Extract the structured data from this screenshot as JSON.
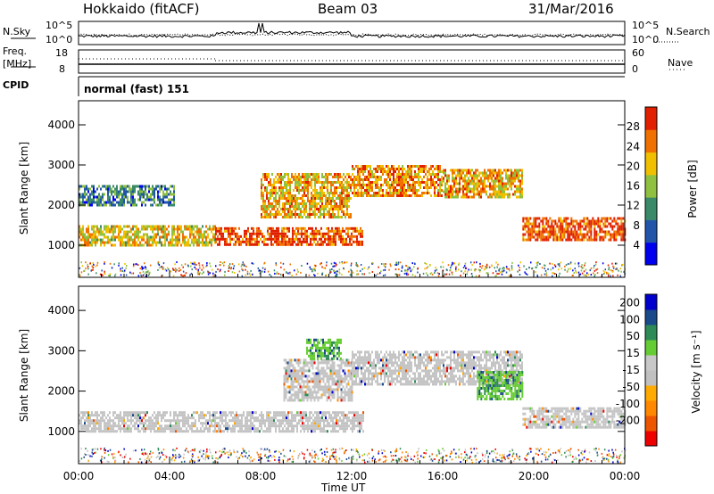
{
  "header": {
    "station": "Hokkaido (fitACF)",
    "beam": "Beam 03",
    "date": "31/Mar/2016"
  },
  "panels": {
    "nsky_label": "N.Sky",
    "nsky_ticks": [
      "10^5",
      "10^0"
    ],
    "nsearch_label": "N.Search",
    "nsearch_ticks": [
      "10^5",
      "10^0"
    ],
    "freq_label": "Freq.",
    "freq_unit": "[MHz]",
    "freq_ticks": [
      "18",
      "8"
    ],
    "nave_label": "Nave",
    "nave_ticks": [
      "60",
      "0"
    ],
    "cpid_label": "CPID",
    "cpid_value": "normal (fast) 151"
  },
  "colors": {
    "power_scale": [
      "#0000ee",
      "#2255aa",
      "#3a8a6a",
      "#8fc040",
      "#f0c000",
      "#f07000",
      "#e02000"
    ],
    "velocity_scale": [
      "#ee0000",
      "#ee5500",
      "#ff8800",
      "#ffaa00",
      "#c0c0c0",
      "#c8c8c8",
      "#66cc33",
      "#2e8b57",
      "#1a4a8a",
      "#0000cc"
    ]
  },
  "chart_data": [
    {
      "type": "heatmap",
      "name": "power",
      "ylabel": "Slant Range [km]",
      "colorbar_label": "Power [dB]",
      "colorbar_ticks": [
        "28",
        "24",
        "20",
        "16",
        "12",
        "8",
        "4"
      ],
      "y_ticks": [
        "4000",
        "3000",
        "2000",
        "1000"
      ],
      "ylim": [
        200,
        4600
      ],
      "xlim_hours": [
        0,
        24
      ],
      "bands": [
        {
          "t": [
            0.0,
            6.0
          ],
          "r": [
            1000,
            1500
          ],
          "level": 20
        },
        {
          "t": [
            0.0,
            4.2
          ],
          "r": [
            2000,
            2500
          ],
          "level": 10
        },
        {
          "t": [
            6.0,
            12.5
          ],
          "r": [
            1000,
            1450
          ],
          "level": 28
        },
        {
          "t": [
            8.0,
            12.0
          ],
          "r": [
            1700,
            2800
          ],
          "level": 22
        },
        {
          "t": [
            12.0,
            16.0
          ],
          "r": [
            2200,
            3000
          ],
          "level": 24
        },
        {
          "t": [
            16.0,
            19.5
          ],
          "r": [
            2200,
            2900
          ],
          "level": 22
        },
        {
          "t": [
            19.5,
            24.0
          ],
          "r": [
            1100,
            1700
          ],
          "level": 28
        }
      ]
    },
    {
      "type": "heatmap",
      "name": "velocity",
      "ylabel": "Slant Range [km]",
      "xlabel": "Time UT",
      "colorbar_label": "Velocity [m s⁻¹]",
      "colorbar_ticks": [
        "200",
        "100",
        "50",
        "15",
        "-15",
        "-50",
        "-100",
        "-200"
      ],
      "y_ticks": [
        "4000",
        "3000",
        "2000",
        "1000"
      ],
      "x_ticks": [
        "00:00",
        "04:00",
        "08:00",
        "12:00",
        "16:00",
        "20:00",
        "00:00"
      ],
      "ylim": [
        200,
        4600
      ],
      "xlim_hours": [
        0,
        24
      ],
      "bands": [
        {
          "t": [
            0.0,
            12.5
          ],
          "r": [
            1000,
            1500
          ],
          "level": 0
        },
        {
          "t": [
            9.0,
            12.0
          ],
          "r": [
            1800,
            2800
          ],
          "level": 0
        },
        {
          "t": [
            10.0,
            11.5
          ],
          "r": [
            2800,
            3300
          ],
          "level": 50
        },
        {
          "t": [
            12.0,
            19.5
          ],
          "r": [
            2200,
            3000
          ],
          "level": 0
        },
        {
          "t": [
            17.5,
            19.5
          ],
          "r": [
            1800,
            2500
          ],
          "level": 40
        },
        {
          "t": [
            19.5,
            24.0
          ],
          "r": [
            1100,
            1600
          ],
          "level": 0
        }
      ]
    }
  ]
}
